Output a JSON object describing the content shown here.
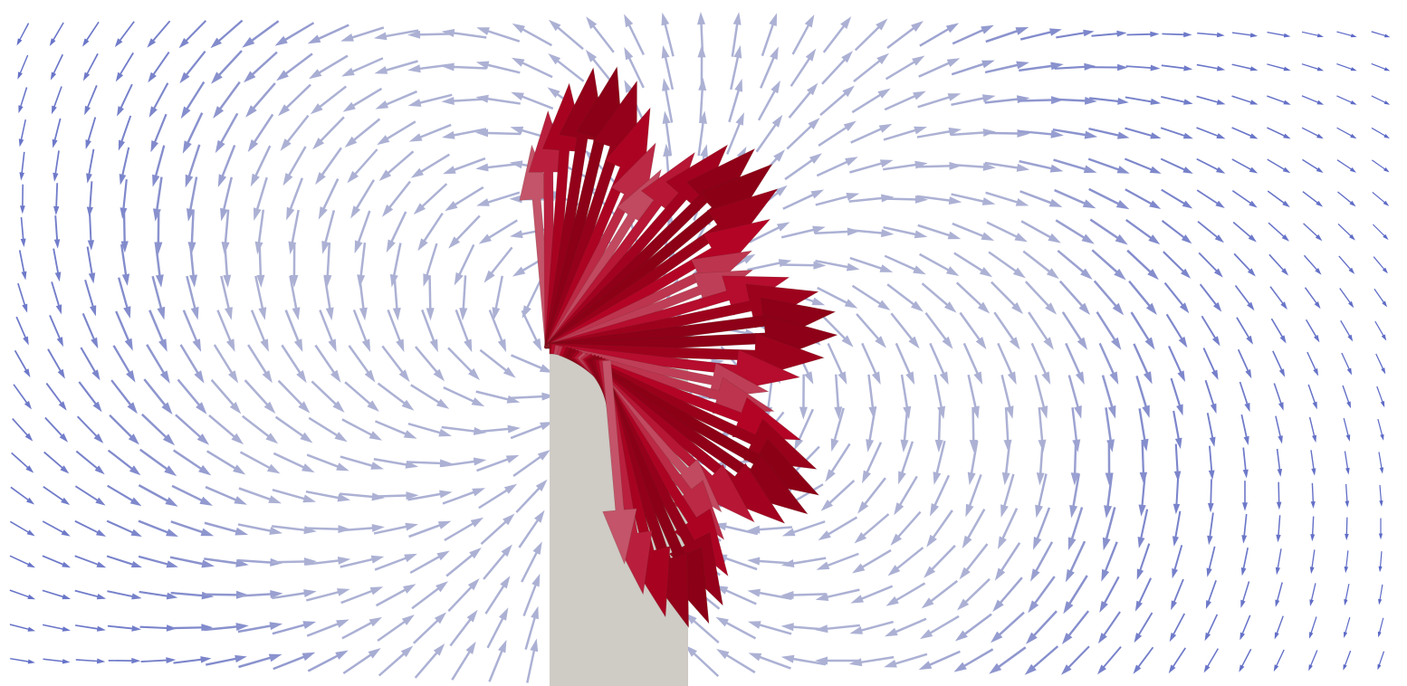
{
  "scene": {
    "kind": "vector-field-glyph-view",
    "background_color": "#ffffff",
    "obstacle_color": "#cfcbc5",
    "colormap": {
      "low": "#3b4cc0",
      "mid": "#dddcdc",
      "high": "#b40426",
      "max": "#8b0016"
    },
    "vortex_centers": [
      {
        "rotation": "counter-clockwise",
        "strength": 1.0
      },
      {
        "rotation": "clockwise",
        "strength": 1.0
      }
    ],
    "glyph_grid": {
      "columns": 41,
      "rows": 20
    },
    "highlighted_glyph_count": 40
  }
}
